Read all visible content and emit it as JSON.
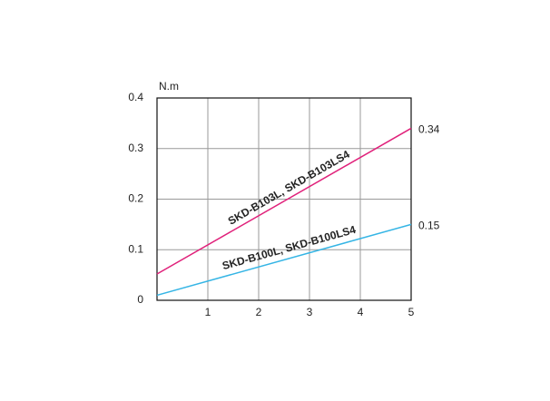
{
  "chart_data": {
    "type": "line",
    "y_label": "N.m",
    "x": [
      0,
      5
    ],
    "series": [
      {
        "name": "SKD-B103L, SKD-B103LS4",
        "color": "#e0207a",
        "values": [
          0.052,
          0.34
        ]
      },
      {
        "name": "SKD-B100L, SKD-B100LS4",
        "color": "#35b5e5",
        "values": [
          0.01,
          0.15
        ]
      }
    ],
    "xlim": [
      0,
      5
    ],
    "xticks": [
      1,
      2,
      3,
      4,
      5
    ],
    "ylim": [
      0,
      0.4
    ],
    "yticks": [
      0,
      0.1,
      0.2,
      0.3,
      0.4
    ],
    "grid": true
  }
}
